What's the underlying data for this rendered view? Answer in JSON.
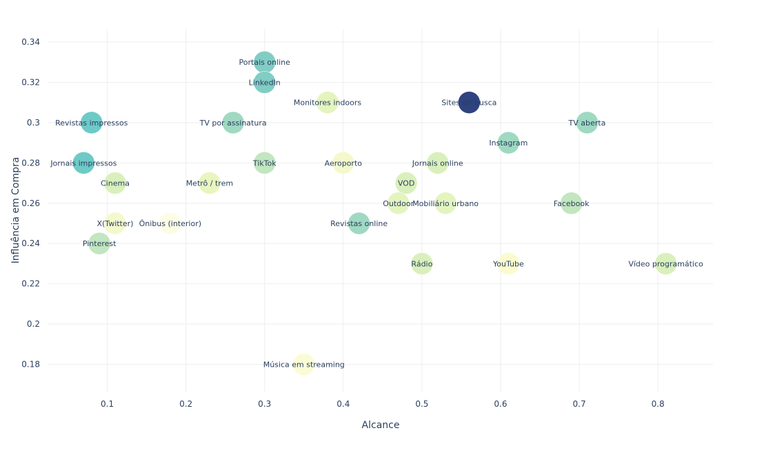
{
  "chart_data": {
    "type": "scatter",
    "xlabel": "Alcance",
    "ylabel": "Influência em Compra",
    "xlim": [
      0.025,
      0.87
    ],
    "ylim": [
      0.1665,
      0.3465
    ],
    "xticks": [
      0.1,
      0.2,
      0.3,
      0.4,
      0.5,
      0.6,
      0.7,
      0.8
    ],
    "yticks": [
      0.18,
      0.2,
      0.22,
      0.24,
      0.26,
      0.28,
      0.3,
      0.32,
      0.34
    ],
    "grid": true,
    "colorscale": [
      "#ffffd9",
      "#edf8b1",
      "#c7e9b4",
      "#7fcdbb",
      "#41b6c4",
      "#1d91c0",
      "#225ea8",
      "#253494",
      "#081d58"
    ],
    "points": [
      {
        "label": "Portais online",
        "x": 0.3,
        "y": 0.33,
        "color": "#81cdc4"
      },
      {
        "label": "LinkedIn",
        "x": 0.3,
        "y": 0.32,
        "color": "#81cdc4"
      },
      {
        "label": "Monitores indoors",
        "x": 0.38,
        "y": 0.31,
        "color": "#e4f4bf"
      },
      {
        "label": "Sites de busca",
        "x": 0.56,
        "y": 0.31,
        "color": "#2f4380"
      },
      {
        "label": "Revistas impressos",
        "x": 0.08,
        "y": 0.3,
        "color": "#6ecac7"
      },
      {
        "label": "TV por assinatura",
        "x": 0.26,
        "y": 0.3,
        "color": "#9fd9c2"
      },
      {
        "label": "TV aberta",
        "x": 0.71,
        "y": 0.3,
        "color": "#9fd9c2"
      },
      {
        "label": "Instagram",
        "x": 0.61,
        "y": 0.29,
        "color": "#9fd9c2"
      },
      {
        "label": "Jornais impressos",
        "x": 0.07,
        "y": 0.28,
        "color": "#6ecac7"
      },
      {
        "label": "TikTok",
        "x": 0.3,
        "y": 0.28,
        "color": "#c2e6bf"
      },
      {
        "label": "Aeroporto",
        "x": 0.4,
        "y": 0.28,
        "color": "#f4f9cc"
      },
      {
        "label": "Jornais online",
        "x": 0.52,
        "y": 0.28,
        "color": "#daf0bc"
      },
      {
        "label": "Cinema",
        "x": 0.11,
        "y": 0.27,
        "color": "#daf0bc"
      },
      {
        "label": "Metrô / trem",
        "x": 0.23,
        "y": 0.27,
        "color": "#e9f5bf"
      },
      {
        "label": "VOD",
        "x": 0.48,
        "y": 0.27,
        "color": "#daf0bc"
      },
      {
        "label": "Outdoor",
        "x": 0.47,
        "y": 0.26,
        "color": "#e4f4bf"
      },
      {
        "label": "Mobiliário urbano",
        "x": 0.53,
        "y": 0.26,
        "color": "#e4f4bf"
      },
      {
        "label": "Facebook",
        "x": 0.69,
        "y": 0.26,
        "color": "#c2e6bf"
      },
      {
        "label": "X(Twitter)",
        "x": 0.11,
        "y": 0.25,
        "color": "#f4f9cc"
      },
      {
        "label": "Ônibus (interior)",
        "x": 0.18,
        "y": 0.25,
        "color": "#fcfde4"
      },
      {
        "label": "Revistas online",
        "x": 0.42,
        "y": 0.25,
        "color": "#9fd9c2"
      },
      {
        "label": "Pinterest",
        "x": 0.09,
        "y": 0.24,
        "color": "#c2e6bf"
      },
      {
        "label": "Rádio",
        "x": 0.5,
        "y": 0.23,
        "color": "#daf0bc"
      },
      {
        "label": "YouTube",
        "x": 0.61,
        "y": 0.23,
        "color": "#fafccf"
      },
      {
        "label": "Vídeo programático",
        "x": 0.81,
        "y": 0.23,
        "color": "#daf0bc"
      },
      {
        "label": "Música em streaming",
        "x": 0.35,
        "y": 0.18,
        "color": "#fafcd6"
      }
    ]
  }
}
